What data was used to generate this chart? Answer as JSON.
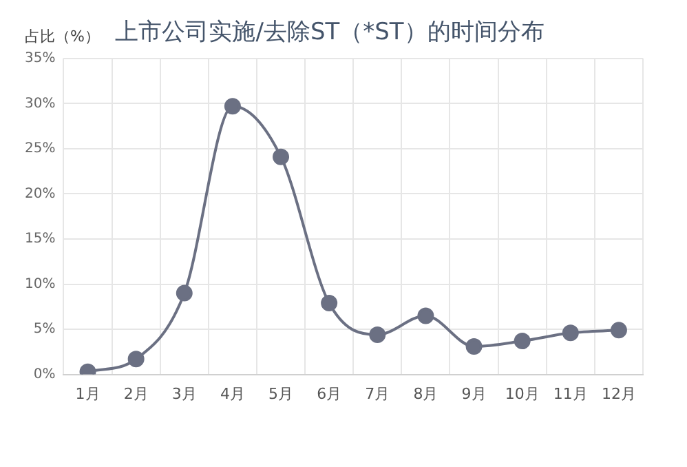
{
  "chart_data": {
    "type": "line",
    "title": "上市公司实施/去除ST（*ST）的时间分布",
    "ylabel": "占比（%）",
    "categories": [
      "1月",
      "2月",
      "3月",
      "4月",
      "5月",
      "6月",
      "7月",
      "8月",
      "9月",
      "10月",
      "11月",
      "12月"
    ],
    "series": [
      {
        "color": "#6b7083",
        "values": [
          0.3,
          1.7,
          9.0,
          29.7,
          24.1,
          7.9,
          4.4,
          6.5,
          3.1,
          3.7,
          4.6,
          4.9
        ]
      }
    ],
    "ylim": [
      0,
      35
    ],
    "yticks": [
      {
        "value": 0,
        "label": "0%"
      },
      {
        "value": 5,
        "label": "5%"
      },
      {
        "value": 10,
        "label": "10%"
      },
      {
        "value": 15,
        "label": "15%"
      },
      {
        "value": 20,
        "label": "20%"
      },
      {
        "value": 25,
        "label": "25%"
      },
      {
        "value": 30,
        "label": "30%"
      },
      {
        "value": 35,
        "label": "35%"
      }
    ],
    "grid": true,
    "marker": "circle",
    "legend": false
  }
}
